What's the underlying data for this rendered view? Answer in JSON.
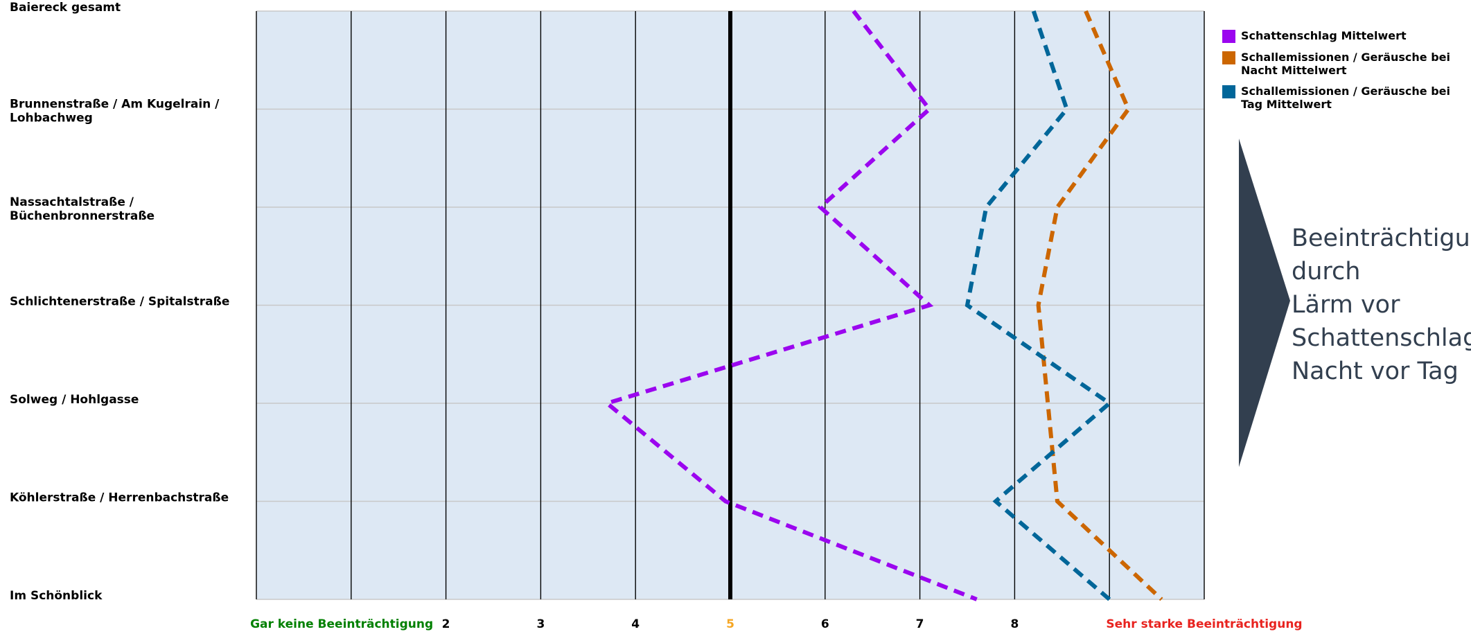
{
  "chart_data": {
    "type": "line",
    "orientation": "horizontal-profile",
    "categories": [
      "Baiereck gesamt",
      "Brunnenstraße / Am Kugelrain / Lohbachweg",
      "Nassachtalstraße / Büchenbronnerstraße",
      "Schlichtenerstraße / Spitalstraße",
      "Solweg / Hohlgasse",
      "Köhlerstraße / Herrenbachstraße",
      "Im Schönblick"
    ],
    "x_ticks": [
      "Gar keine Beeinträchtigung",
      "2",
      "3",
      "4",
      "5",
      "6",
      "7",
      "8",
      "Sehr starke Beeinträchtigung"
    ],
    "xlim": [
      0,
      10
    ],
    "midline_value": 5,
    "grid": true,
    "legend_position": "top-right",
    "series": [
      {
        "name": "Schattenschlag Mittelwert",
        "color": "#9b06ef",
        "values": [
          6.3,
          7.1,
          5.95,
          7.1,
          3.7,
          4.95,
          7.6
        ]
      },
      {
        "name": "Schallemissionen / Geräusche bei Nacht Mittelwert",
        "color": "#cc6600",
        "values": [
          8.75,
          9.2,
          8.45,
          8.25,
          8.35,
          8.45,
          9.55
        ]
      },
      {
        "name": "Schallemissionen / Geräusche bei Tag Mittelwert",
        "color": "#006699",
        "values": [
          8.2,
          8.55,
          7.7,
          7.5,
          9.0,
          7.8,
          9.0
        ]
      }
    ],
    "tick_colors": {
      "first": "#008000",
      "mid": "#f5a623",
      "last": "#e8231f",
      "default": "#000000"
    }
  },
  "callout": {
    "text": "Beeinträchtigung durch\nLärm vor\nSchattenschlag,\nNacht vor Tag",
    "color": "#323f4f"
  },
  "colors": {
    "plot_background": "#dde8f4",
    "gridline_horizontal": "#c8c8c8",
    "gridline_vertical": "#000000"
  }
}
